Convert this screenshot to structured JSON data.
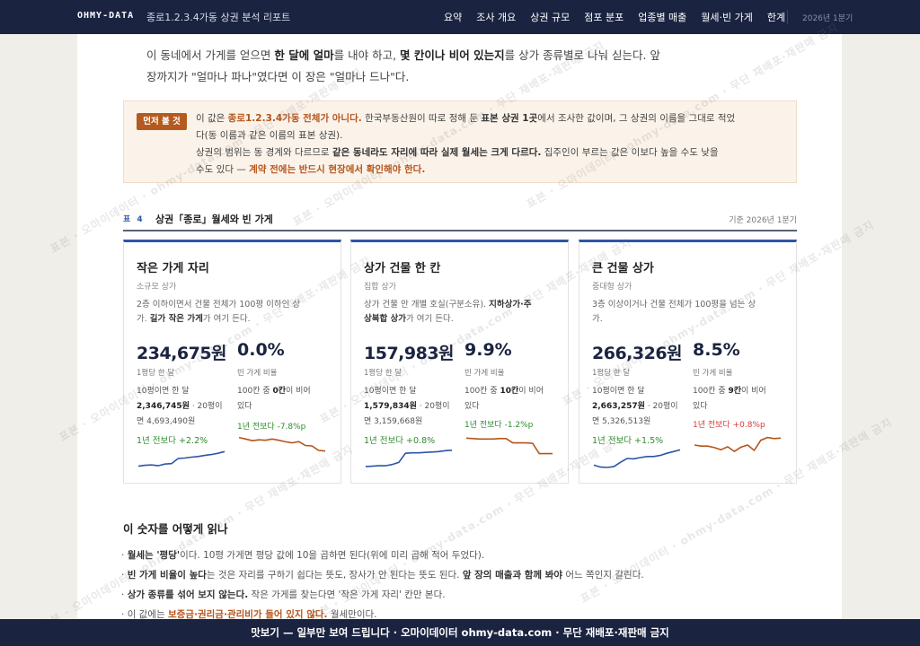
{
  "header": {
    "brand": "OHMY-DATA",
    "doc_title": "종로1.2.3.4가동 상권 분석 리포트",
    "nav": [
      "요약",
      "조사 개요",
      "상권 규모",
      "점포 분포",
      "업종별 매출",
      "월세·빈 가게",
      "한계"
    ],
    "period": "2026년 1분기"
  },
  "intro": {
    "p1": "이 동네에서 가게를 얻으면 ",
    "b1": "한 달에 얼마",
    "p2": "를 내야 하고, ",
    "b2": "몇 칸이나 비어 있는지",
    "p3": "를 상가 종류별로 나눠 싣는다. 앞",
    "line2": "장까지가 \"얼마나 파나\"였다면 이 장은 \"얼마나 드나\"다."
  },
  "notice": {
    "badge": "먼저 볼 것",
    "t1": "이 값은 ",
    "h1": "종로1.2.3.4가동 전체가 아니다.",
    "t2": " 한국부동산원이 따로 정해 둔 ",
    "b1": "표본 상권 1곳",
    "t3": "에서 조사한 값이며, 그 상권의 이름을 그대로 적었",
    "t4": "다(동 이름과 같은 이름의 표본 상권).",
    "t5": "상권의 범위는 동 경계와 다르므로 ",
    "b2": "같은 동네라도 자리에 따라 실제 월세는 크게 다르다.",
    "t6": " 집주인이 부르는 값은 이보다 높을 수도 낮을",
    "t7": "수도 있다 — ",
    "h2": "계약 전에는 반드시 현장에서 확인해야 한다."
  },
  "table": {
    "tag": "표 4",
    "title": "상권「종로」월세와 빈 가게",
    "period": "기준 2026년 1분기"
  },
  "cards": [
    {
      "title": "작은 가게 자리",
      "subtitle": "소규모 상가",
      "desc1": "2층 이하이면서 건물 전체가 100평 이하인 상",
      "desc2a": "가. ",
      "desc2b": "길가 작은 가게",
      "desc2c": "가 여기 든다.",
      "price": "234,675원",
      "price_label": "1평당 한 달",
      "vacancy": "0.0%",
      "vacancy_label": "빈 가게 비율",
      "calc1": "10평이면 한 달",
      "calc2b": "2,346,745원",
      "calc2c": " · 20평이",
      "calc3": "면 4,693,490원",
      "vac1": "100칸 중 ",
      "vac1b": "0칸",
      "vac1c": "이 비어",
      "vac2": "있다",
      "price_change": "1년 전보다 +2.2%",
      "vacancy_change": "1년 전보다 -7.8%p",
      "vacancy_change_color": "#2e8b2e"
    },
    {
      "title": "상가 건물 한 칸",
      "subtitle": "집합 상가",
      "desc1": "상가 건물 안 개별 호실(구분소유). ",
      "desc1b": "지하상가·주",
      "desc2a": "",
      "desc2b": "상복합 상가",
      "desc2c": "가 여기 든다.",
      "price": "157,983원",
      "price_label": "1평당 한 달",
      "vacancy": "9.9%",
      "vacancy_label": "빈 가게 비율",
      "calc1": "10평이면 한 달",
      "calc2b": "1,579,834원",
      "calc2c": " · 20평이",
      "calc3": "면 3,159,668원",
      "vac1": "100칸 중 ",
      "vac1b": "10칸",
      "vac1c": "이 비어",
      "vac2": "있다",
      "price_change": "1년 전보다 +0.8%",
      "vacancy_change": "1년 전보다 -1.2%p",
      "vacancy_change_color": "#2e8b2e"
    },
    {
      "title": "큰 건물 상가",
      "subtitle": "중대형 상가",
      "desc1": "3층 이상이거나 건물 전체가 100평을 넘는 상",
      "desc2a": "가.",
      "desc2b": "",
      "desc2c": "",
      "price": "266,326원",
      "price_label": "1평당 한 달",
      "vacancy": "8.5%",
      "vacancy_label": "빈 가게 비율",
      "calc1": "10평이면 한 달",
      "calc2b": "2,663,257원",
      "calc2c": " · 20평이",
      "calc3": "면 5,326,513원",
      "vac1": "100칸 중 ",
      "vac1b": "9칸",
      "vac1c": "이 비어",
      "vac2": "있다",
      "price_change": "1년 전보다 +1.5%",
      "vacancy_change": "1년 전보다 +0.8%p",
      "vacancy_change_color": "#d63a3a"
    }
  ],
  "chart_data": [
    {
      "type": "line",
      "series": [
        {
          "values": [
            0.1,
            0.14,
            0.16,
            0.12,
            0.2,
            0.22,
            0.46,
            0.48,
            0.52,
            0.55,
            0.6,
            0.64,
            0.7,
            0.78
          ]
        }
      ],
      "color": "#2d55a5"
    },
    {
      "type": "line",
      "series": [
        {
          "values": [
            0.85,
            0.78,
            0.7,
            0.74,
            0.72,
            0.78,
            0.72,
            0.65,
            0.6,
            0.66,
            0.48,
            0.46,
            0.25,
            0.22
          ]
        }
      ],
      "color": "#b5541b"
    },
    {
      "type": "line",
      "series": [
        {
          "values": [
            0.08,
            0.1,
            0.12,
            0.12,
            0.18,
            0.28,
            0.7,
            0.72,
            0.72,
            0.74,
            0.76,
            0.78,
            0.82,
            0.84
          ]
        }
      ],
      "color": "#2d55a5"
    },
    {
      "type": "line",
      "series": [
        {
          "values": [
            0.82,
            0.8,
            0.78,
            0.78,
            0.78,
            0.8,
            0.8,
            0.6,
            0.6,
            0.6,
            0.58,
            0.1,
            0.1,
            0.1
          ]
        }
      ],
      "color": "#b5541b"
    },
    {
      "type": "line",
      "series": [
        {
          "values": [
            0.15,
            0.06,
            0.04,
            0.08,
            0.28,
            0.46,
            0.44,
            0.5,
            0.55,
            0.55,
            0.6,
            0.7,
            0.78,
            0.86
          ]
        }
      ],
      "color": "#2d55a5"
    },
    {
      "type": "line",
      "series": [
        {
          "values": [
            0.5,
            0.45,
            0.45,
            0.38,
            0.28,
            0.42,
            0.2,
            0.4,
            0.5,
            0.25,
            0.72,
            0.85,
            0.8,
            0.82
          ]
        }
      ],
      "color": "#b5541b"
    }
  ],
  "section": {
    "heading": "이 숫자를 어떻게 읽나",
    "bullets": [
      {
        "b": "월세는 '평당'",
        "t": "이다. 10평 가게면 평당 값에 10을 곱하면 된다(위에 미리 곱해 적어 두었다)."
      },
      {
        "b": "빈 가게 비율이 높다",
        "t": "는 것은 자리를 구하기 쉽다는 뜻도, 장사가 안 된다는 뜻도 된다. ",
        "b2": "앞 장의 매출과 함께 봐야",
        "t2": " 어느 쪽인지 갈린다."
      },
      {
        "b": "상가 종류를 섞어 보지 않는다.",
        "t": " 작은 가게를 찾는다면 '작은 가게 자리' 칸만 본다."
      },
      {
        "b": "",
        "t": "이 값에는 ",
        "h": "보증금·권리금·관리비가 들어 있지 않다.",
        "t2": " 월세만이다."
      }
    ]
  },
  "watermark": "표본 · 오마이데이터 · ohmy-data.com · 무단 재배포·재판매 금지",
  "footer": "맛보기 — 일부만 보여 드립니다 · 오마이데이터 ohmy-data.com · 무단 재배포·재판매 금지"
}
